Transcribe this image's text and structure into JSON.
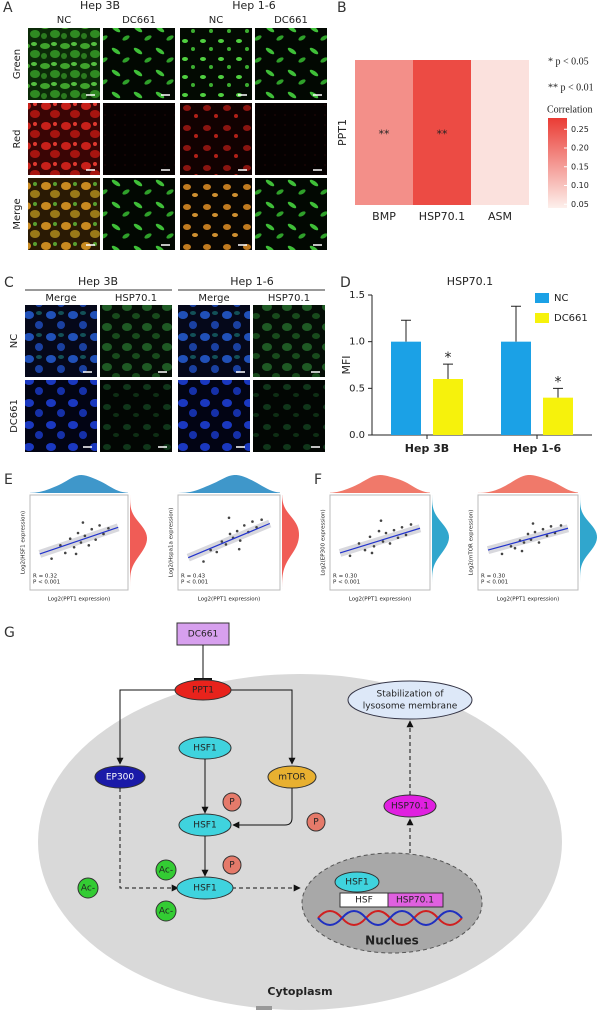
{
  "panels": [
    "A",
    "B",
    "C",
    "D",
    "E",
    "F",
    "G"
  ],
  "panel_a": {
    "cell_lines": [
      "Hep 3B",
      "Hep 1-6"
    ],
    "columns": [
      "NC",
      "DC661",
      "NC",
      "DC661"
    ],
    "rows": [
      "Green",
      "Red",
      "Merge"
    ]
  },
  "panel_c": {
    "cell_lines": [
      "Hep 3B",
      "Hep 1-6"
    ],
    "columns": [
      "Merge",
      "HSP70.1",
      "Merge",
      "HSP70.1"
    ],
    "rows": [
      "NC",
      "DC661"
    ]
  },
  "chart_data": [
    {
      "type": "heatmap",
      "y_categories": [
        "PPT1"
      ],
      "categories": [
        "BMP",
        "HSP70.1",
        "ASM"
      ],
      "values": [
        0.17,
        0.26,
        0.06
      ],
      "significance": [
        "**",
        "**",
        null
      ],
      "legend_notes": [
        "* p < 0.05",
        "** p < 0.01"
      ],
      "colorbar_title": "Correlation",
      "clim": [
        0.04,
        0.28
      ],
      "colors": [
        "#fdf0ec",
        "#ea3c35"
      ],
      "cticks": [
        0.05,
        {
          "value": 0.1,
          "label": "0.10"
        },
        0.15,
        {
          "value": 0.2,
          "label": "0.20"
        },
        0.25
      ]
    },
    {
      "type": "bar",
      "title": "HSP70.1",
      "categories": [
        "Hep 3B",
        "Hep 1-6"
      ],
      "ylabel": "MFI",
      "ylim": [
        0,
        1.5
      ],
      "yticks": [
        {
          "value": 0,
          "label": "0.0"
        },
        0.5,
        {
          "value": 1,
          "label": "1.0"
        },
        1.5
      ],
      "legend": "upper right",
      "series": [
        {
          "name": "NC",
          "color": "#1ba1e6",
          "values": [
            1.0,
            1.0
          ],
          "errors": [
            0.23,
            0.38
          ]
        },
        {
          "name": "DC661",
          "color": "#f6f20c",
          "values": [
            0.6,
            0.4
          ],
          "errors": [
            0.16,
            0.1
          ],
          "significance": [
            "*",
            "*"
          ]
        }
      ]
    },
    {
      "type": "scatter",
      "x_label": "Log2(PPT1 expression)",
      "y_label": "Log2(HSF1 expression)",
      "stats": [
        "R = 0.32",
        "P < 0.001"
      ],
      "xlim": [
        0,
        10
      ],
      "ylim": [
        0,
        10
      ],
      "top_density_color": "#2a8cc4",
      "right_density_color": "#ee4a44",
      "x": [
        2.2,
        3.1,
        3.6,
        4.1,
        4.5,
        4.9,
        5.2,
        5.6,
        6.0,
        6.3,
        6.7,
        7.1,
        7.5,
        8.0,
        5.4,
        4.7
      ],
      "y": [
        3.3,
        4.7,
        3.9,
        5.4,
        4.5,
        6.0,
        5.0,
        5.7,
        4.7,
        6.4,
        5.3,
        6.8,
        5.9,
        6.5,
        7.1,
        3.8
      ],
      "fit_x": [
        1,
        9
      ],
      "fit_y": [
        3.8,
        6.6
      ]
    },
    {
      "type": "scatter",
      "x_label": "Log2(PPT1 expression)",
      "y_label": "Log2(Hspa1a expression)",
      "stats": [
        "R = 0.43",
        "P < 0.001"
      ],
      "xlim": [
        0,
        10
      ],
      "ylim": [
        0,
        10
      ],
      "top_density_color": "#2a8cc4",
      "right_density_color": "#ee4a44",
      "x": [
        2.5,
        3.2,
        3.8,
        4.3,
        4.7,
        5.1,
        5.4,
        5.8,
        6.1,
        6.5,
        6.9,
        7.3,
        7.7,
        8.2,
        5.0,
        6.0
      ],
      "y": [
        3.0,
        4.2,
        4.0,
        5.1,
        4.8,
        5.9,
        5.5,
        6.2,
        5.2,
        6.8,
        6.1,
        7.2,
        6.6,
        7.4,
        7.6,
        4.3
      ],
      "fit_x": [
        1,
        9
      ],
      "fit_y": [
        3.4,
        7.0
      ]
    },
    {
      "type": "scatter",
      "x_label": "Log2(PPT1 expression)",
      "y_label": "Log2(EP300 expression)",
      "stats": [
        "R = 0.30",
        "P < 0.001"
      ],
      "xlim": [
        0,
        10
      ],
      "ylim": [
        0,
        10
      ],
      "top_density_color": "#ee6a5a",
      "right_density_color": "#1a9cc8",
      "x": [
        2.0,
        2.9,
        3.5,
        4.0,
        4.4,
        4.9,
        5.3,
        5.6,
        6.0,
        6.4,
        6.8,
        7.2,
        7.6,
        8.1,
        5.1,
        4.2
      ],
      "y": [
        3.6,
        4.9,
        4.2,
        5.6,
        4.6,
        6.2,
        5.1,
        6.0,
        4.9,
        6.3,
        5.5,
        6.6,
        5.8,
        6.9,
        7.3,
        3.9
      ],
      "fit_x": [
        1,
        9
      ],
      "fit_y": [
        3.9,
        6.5
      ]
    },
    {
      "type": "scatter",
      "x_label": "Log2(PPT1 expression)",
      "y_label": "Log2(mTOR expression)",
      "stats": [
        "R = 0.30",
        "P < 0.001"
      ],
      "xlim": [
        0,
        10
      ],
      "ylim": [
        0,
        10
      ],
      "top_density_color": "#ee6a5a",
      "right_density_color": "#1a9cc8",
      "x": [
        2.4,
        3.3,
        3.7,
        4.2,
        4.6,
        5.0,
        5.3,
        5.7,
        6.1,
        6.5,
        6.9,
        7.3,
        7.7,
        8.3,
        5.5,
        4.4
      ],
      "y": [
        3.8,
        4.6,
        4.4,
        5.2,
        5.0,
        5.9,
        5.3,
        6.1,
        5.0,
        6.4,
        5.7,
        6.7,
        6.0,
        6.8,
        7.0,
        4.1
      ],
      "fit_x": [
        1,
        9
      ],
      "fit_y": [
        4.2,
        6.5
      ]
    }
  ],
  "diagram": {
    "nodes": [
      {
        "label": "DC661"
      },
      {
        "label": "PPT1"
      },
      {
        "lines": [
          "Stabilization of",
          "lysosome membrane"
        ]
      },
      {
        "label": "HSF1"
      },
      {
        "label": "EP300"
      },
      {
        "label": "mTOR"
      },
      {
        "label": "P"
      },
      {
        "label": "HSF1"
      },
      {
        "label": "P"
      },
      {
        "label": "P"
      },
      {
        "label": "Ac-"
      },
      {
        "label": "Ac-"
      },
      {
        "label": "Ac-"
      },
      {
        "label": "HSF1"
      },
      {
        "label": "HSP70.1"
      },
      {
        "label": "HSF1"
      },
      {
        "label": "HSF"
      },
      {
        "label": "HSP70.1"
      }
    ],
    "nucleus_label": "Nuclues",
    "cytoplasm_label": "Cytoplasm"
  }
}
